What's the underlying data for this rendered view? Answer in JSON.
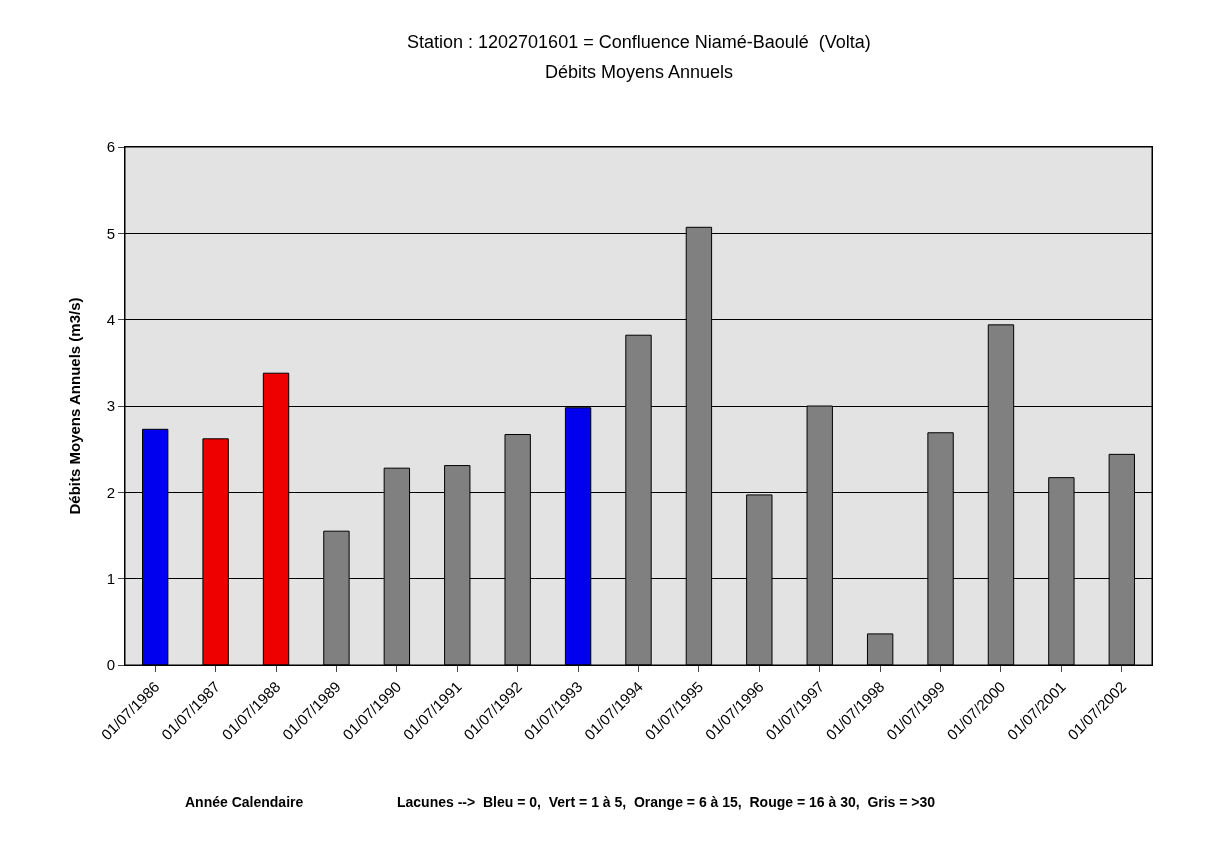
{
  "chart_data": {
    "type": "bar",
    "title": "Station : 1202701601 = Confluence Niamé-Baoulé  (Volta)",
    "subtitle": "Débits Moyens Annuels",
    "xlabel": "Année Calendaire",
    "ylabel": "Débits Moyens Annuels (m3/s)",
    "annotations": [
      "Lacunes -->  Bleu = 0,  Vert = 1 à 5,  Orange = 6 à 15,  Rouge = 16 à 30,  Gris = >30"
    ],
    "categories": [
      "01/07/1986",
      "01/07/1987",
      "01/07/1988",
      "01/07/1989",
      "01/07/1990",
      "01/07/1991",
      "01/07/1992",
      "01/07/1993",
      "01/07/1994",
      "01/07/1995",
      "01/07/1996",
      "01/07/1997",
      "01/07/1998",
      "01/07/1999",
      "01/07/2000",
      "01/07/2001",
      "01/07/2002"
    ],
    "values": [
      2.73,
      2.62,
      3.38,
      1.55,
      2.28,
      2.31,
      2.67,
      2.98,
      3.82,
      5.07,
      1.97,
      3.0,
      0.36,
      2.69,
      3.94,
      2.17,
      2.44
    ],
    "colors": [
      "#0000ee",
      "#ee0000",
      "#ee0000",
      "#808080",
      "#808080",
      "#808080",
      "#808080",
      "#0000ee",
      "#808080",
      "#808080",
      "#808080",
      "#808080",
      "#808080",
      "#808080",
      "#808080",
      "#808080",
      "#808080"
    ],
    "ylim": [
      0,
      6
    ],
    "yticks": [
      0,
      1,
      2,
      3,
      4,
      5,
      6
    ],
    "grid": "y"
  }
}
